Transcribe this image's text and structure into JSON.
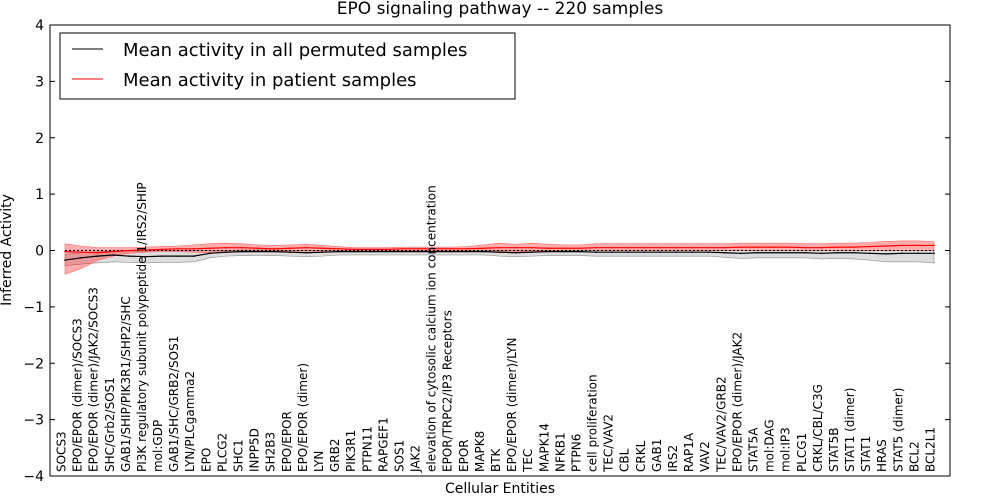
{
  "chart_data": {
    "type": "line",
    "title": "EPO signaling pathway -- 220 samples",
    "xlabel": "Cellular Entities",
    "ylabel": "Inferred Activity",
    "ylim": [
      -4,
      4
    ],
    "yticks": [
      "−4",
      "−3",
      "−2",
      "−1",
      "0",
      "1",
      "2",
      "3",
      "4"
    ],
    "grid": false,
    "legend_position": "top-left",
    "reference_line": 0,
    "categories": [
      "SOCS3",
      "EPO/EPOR (dimer)/SOCS3",
      "EPO/EPOR (dimer)/JAK2/SOCS3",
      "SHC/Grb2/SOS1",
      "GAB1/SHIP/PIK3R1/SHP2/SHC",
      "PI3K regulatory subunit polypeptide 1/IRS2/SHIP",
      "mol:GDP",
      "GAB1/SHC/GRB2/SOS1",
      "LYN/PLCgamma2",
      "EPO",
      "PLCG2",
      "SHC1",
      "INPP5D",
      "SH2B3",
      "EPO/EPOR",
      "EPO/EPOR (dimer)",
      "LYN",
      "GRB2",
      "PIK3R1",
      "PTPN11",
      "RAPGEF1",
      "SOS1",
      "JAK2",
      "elevation of cytosolic calcium ion concentration",
      "EPOR/TRPC2/IP3 Receptors",
      "EPOR",
      "MAPK8",
      "BTK",
      "EPO/EPOR (dimer)/LYN",
      "TEC",
      "MAPK14",
      "NFKB1",
      "PTPN6",
      "cell proliferation",
      "TEC/VAV2",
      "CBL",
      "CRKL",
      "GAB1",
      "IRS2",
      "RAP1A",
      "VAV2",
      "TEC/VAV2/GRB2",
      "EPO/EPOR (dimer)/JAK2",
      "STAT5A",
      "mol:DAG",
      "mol:IP3",
      "PLCG1",
      "CRKL/CBL/C3G",
      "STAT5B",
      "STAT1 (dimer)",
      "STAT1",
      "HRAS",
      "STAT5 (dimer)",
      "BCL2",
      "BCL2L1"
    ],
    "series": [
      {
        "name": "Mean activity in all permuted samples",
        "color": "#000000",
        "values": [
          -0.17,
          -0.13,
          -0.1,
          -0.08,
          -0.1,
          -0.11,
          -0.1,
          -0.1,
          -0.1,
          -0.05,
          -0.03,
          -0.02,
          -0.02,
          -0.02,
          -0.03,
          -0.04,
          -0.03,
          -0.02,
          -0.02,
          -0.02,
          -0.02,
          -0.02,
          -0.02,
          -0.02,
          -0.02,
          -0.02,
          -0.02,
          -0.03,
          -0.04,
          -0.03,
          -0.02,
          -0.02,
          -0.02,
          -0.03,
          -0.03,
          -0.03,
          -0.03,
          -0.03,
          -0.03,
          -0.03,
          -0.03,
          -0.04,
          -0.05,
          -0.04,
          -0.04,
          -0.04,
          -0.04,
          -0.05,
          -0.04,
          -0.04,
          -0.05,
          -0.06,
          -0.05,
          -0.05,
          -0.05
        ],
        "band_lower": [
          -0.27,
          -0.24,
          -0.22,
          -0.2,
          -0.21,
          -0.22,
          -0.21,
          -0.21,
          -0.2,
          -0.13,
          -0.1,
          -0.09,
          -0.09,
          -0.09,
          -0.1,
          -0.11,
          -0.1,
          -0.08,
          -0.08,
          -0.08,
          -0.08,
          -0.08,
          -0.08,
          -0.08,
          -0.08,
          -0.08,
          -0.08,
          -0.1,
          -0.11,
          -0.1,
          -0.09,
          -0.09,
          -0.09,
          -0.1,
          -0.1,
          -0.1,
          -0.1,
          -0.1,
          -0.1,
          -0.1,
          -0.1,
          -0.12,
          -0.14,
          -0.13,
          -0.13,
          -0.13,
          -0.13,
          -0.15,
          -0.14,
          -0.15,
          -0.17,
          -0.2,
          -0.2,
          -0.2,
          -0.22
        ],
        "band_upper": [
          -0.07,
          -0.04,
          -0.02,
          -0.01,
          -0.01,
          -0.01,
          0.0,
          0.0,
          0.0,
          0.0,
          0.0,
          0.01,
          0.01,
          0.01,
          0.0,
          0.0,
          0.0,
          0.0,
          0.0,
          0.0,
          0.0,
          0.0,
          0.0,
          0.0,
          0.0,
          0.0,
          0.0,
          0.0,
          0.0,
          0.0,
          0.0,
          0.0,
          0.0,
          0.0,
          0.0,
          0.0,
          0.0,
          0.0,
          0.0,
          0.0,
          0.0,
          0.0,
          0.0,
          0.0,
          0.0,
          0.0,
          0.0,
          0.0,
          0.0,
          0.0,
          0.0,
          0.0,
          0.0,
          0.0,
          0.0
        ]
      },
      {
        "name": "Mean activity in patient samples",
        "color": "#ff0000",
        "values": [
          -0.02,
          -0.03,
          -0.04,
          -0.02,
          0.0,
          0.01,
          0.02,
          0.03,
          0.03,
          0.04,
          0.05,
          0.05,
          0.04,
          0.03,
          0.04,
          0.05,
          0.04,
          0.03,
          0.02,
          0.02,
          0.02,
          0.03,
          0.03,
          0.03,
          0.03,
          0.03,
          0.04,
          0.05,
          0.05,
          0.05,
          0.04,
          0.04,
          0.04,
          0.05,
          0.05,
          0.05,
          0.05,
          0.05,
          0.05,
          0.05,
          0.05,
          0.05,
          0.06,
          0.06,
          0.06,
          0.06,
          0.05,
          0.05,
          0.06,
          0.06,
          0.07,
          0.08,
          0.09,
          0.09,
          0.09
        ],
        "band_lower": [
          -0.42,
          -0.32,
          -0.18,
          -0.1,
          -0.05,
          -0.03,
          -0.02,
          -0.02,
          -0.03,
          -0.04,
          -0.04,
          -0.02,
          -0.01,
          -0.01,
          -0.01,
          -0.01,
          -0.01,
          0.0,
          0.0,
          0.0,
          0.0,
          0.0,
          0.0,
          0.0,
          0.0,
          0.0,
          -0.02,
          -0.04,
          -0.03,
          -0.02,
          -0.01,
          0.0,
          0.0,
          0.0,
          0.0,
          0.0,
          0.0,
          0.0,
          0.0,
          0.0,
          0.0,
          0.0,
          0.0,
          0.0,
          0.0,
          0.0,
          0.0,
          0.0,
          0.0,
          0.0,
          0.0,
          0.0,
          0.0,
          0.0,
          0.0
        ],
        "band_upper": [
          0.12,
          0.08,
          0.05,
          0.05,
          0.05,
          0.06,
          0.07,
          0.08,
          0.1,
          0.12,
          0.13,
          0.12,
          0.1,
          0.09,
          0.1,
          0.11,
          0.09,
          0.07,
          0.05,
          0.05,
          0.05,
          0.06,
          0.06,
          0.06,
          0.06,
          0.07,
          0.1,
          0.13,
          0.11,
          0.13,
          0.11,
          0.1,
          0.1,
          0.12,
          0.12,
          0.12,
          0.12,
          0.12,
          0.12,
          0.12,
          0.12,
          0.12,
          0.13,
          0.13,
          0.13,
          0.13,
          0.12,
          0.12,
          0.13,
          0.13,
          0.14,
          0.16,
          0.17,
          0.17,
          0.16
        ]
      }
    ]
  }
}
